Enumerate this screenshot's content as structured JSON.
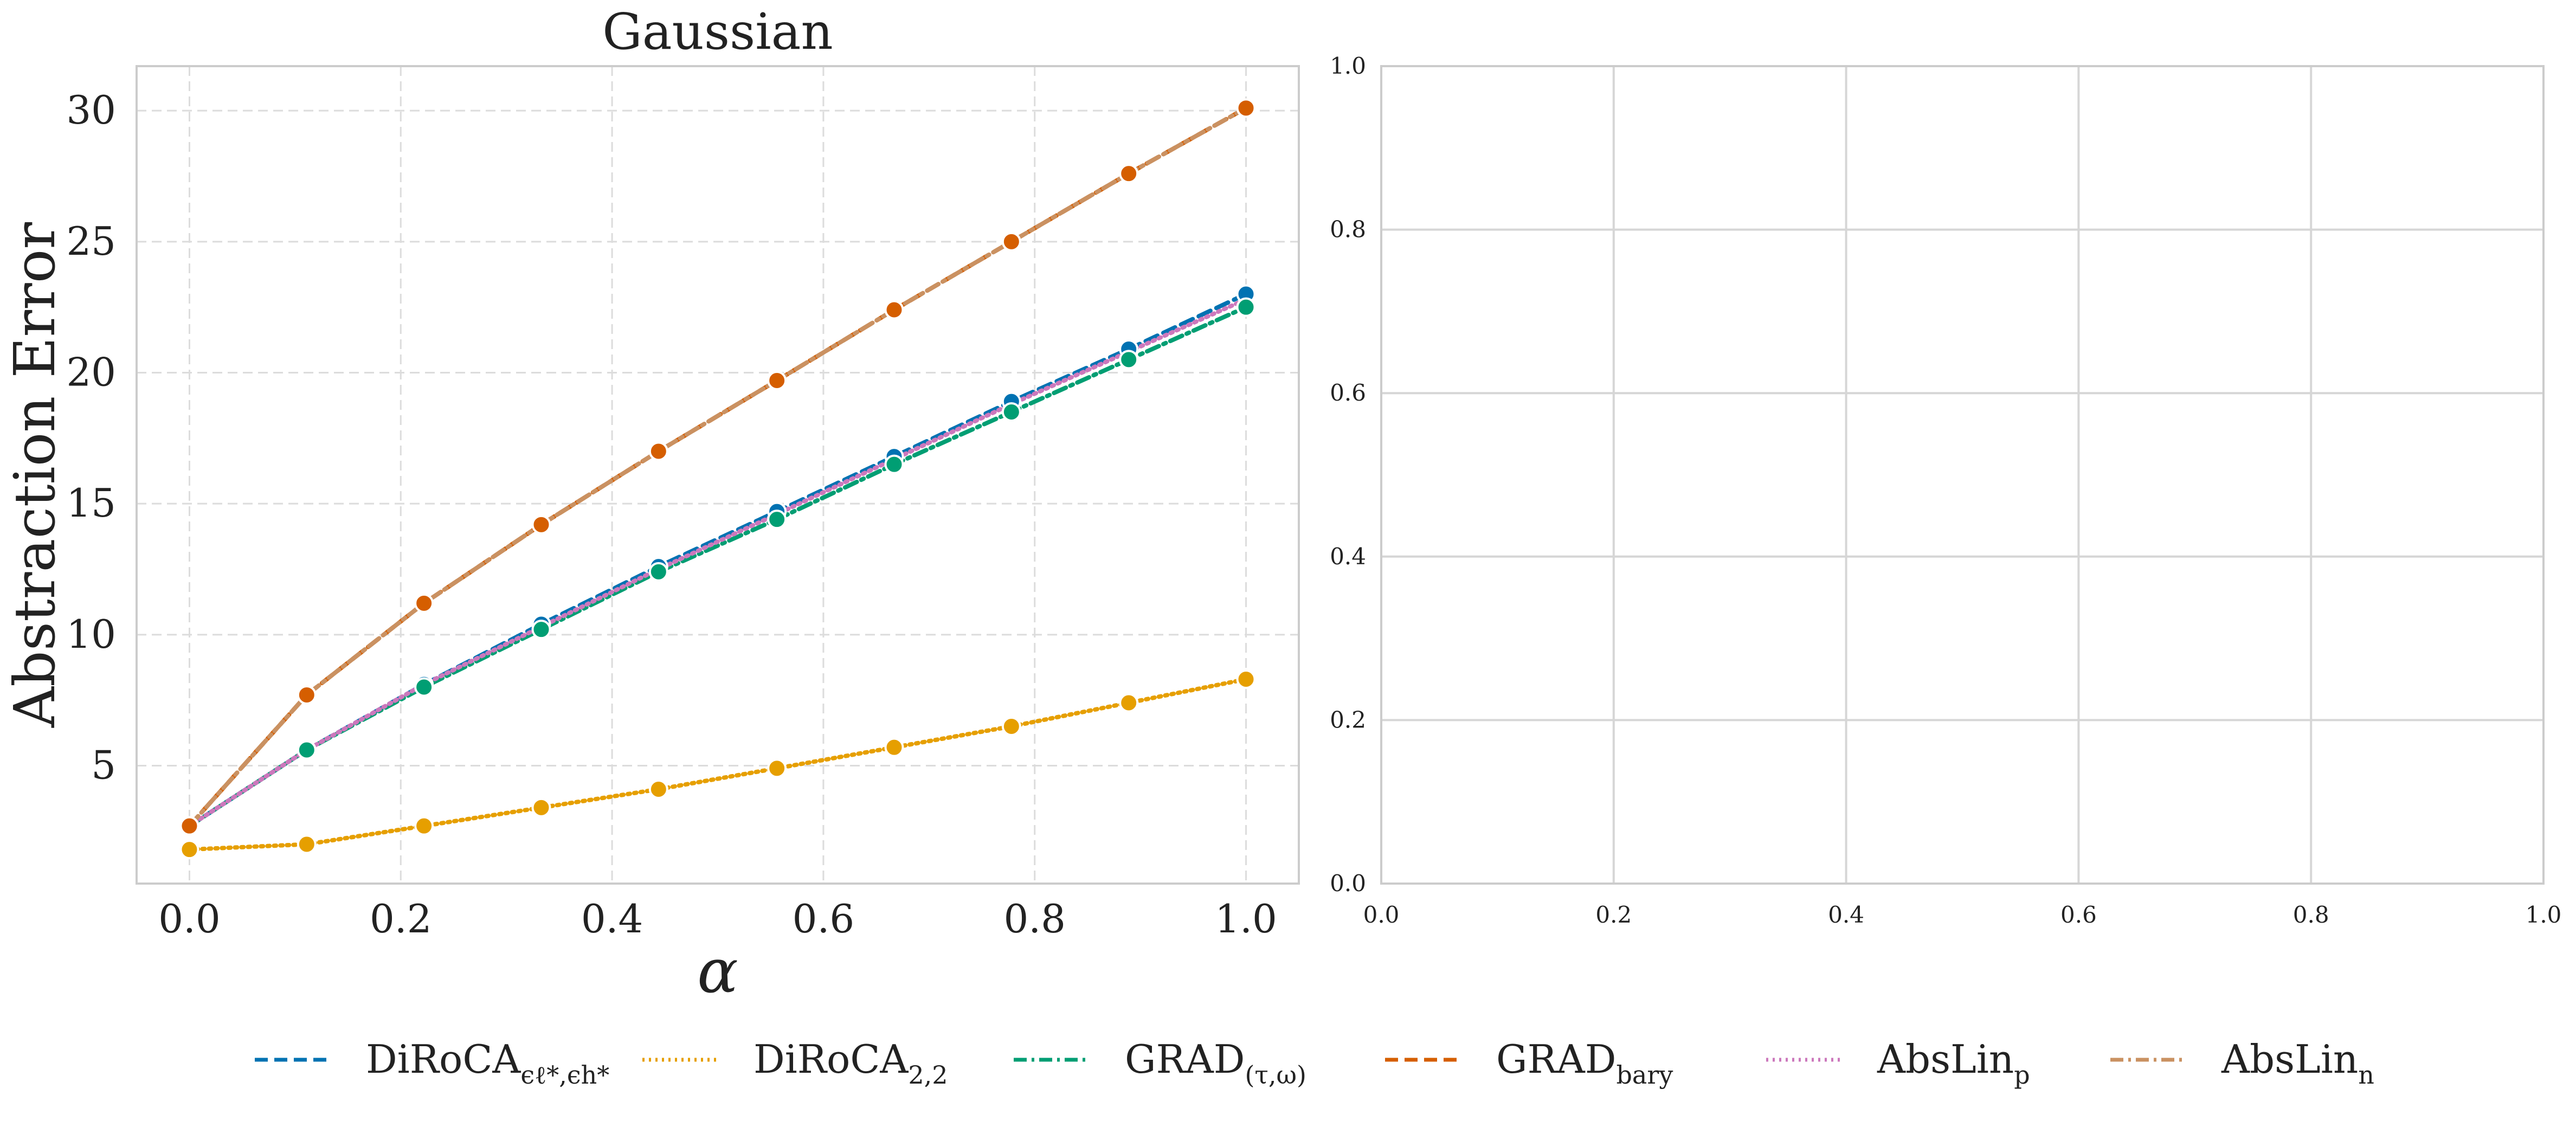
{
  "chart_data": [
    {
      "type": "line",
      "title": "Gaussian",
      "xlabel": "α",
      "ylabel": "Abstraction Error",
      "xlim": [
        -0.05,
        1.05
      ],
      "ylim": [
        0.5,
        31.7
      ],
      "xticks": [
        "0.0",
        "0.2",
        "0.4",
        "0.6",
        "0.8",
        "1.0"
      ],
      "yticks": [
        "5",
        "10",
        "15",
        "20",
        "25",
        "30"
      ],
      "grid": true,
      "legend_position": "bottom-center",
      "x": [
        0.0,
        0.111,
        0.222,
        0.333,
        0.444,
        0.556,
        0.667,
        0.778,
        0.889,
        1.0
      ],
      "series": [
        {
          "name": "DiRoCA",
          "name_sub": "ϵℓ*,ϵh*",
          "color": "#0072b2",
          "dash": "dashed",
          "values": [
            2.7,
            5.6,
            8.1,
            10.4,
            12.6,
            14.7,
            16.8,
            18.9,
            20.9,
            23.0
          ]
        },
        {
          "name": "DiRoCA",
          "name_sub": "2,2",
          "color": "#e69f00",
          "dash": "dotted",
          "values": [
            1.8,
            2.0,
            2.7,
            3.4,
            4.1,
            4.9,
            5.7,
            6.5,
            7.4,
            8.3
          ]
        },
        {
          "name": "GRAD",
          "name_sub": "(τ,ω)",
          "color": "#009e73",
          "dash": "dashdot",
          "values": [
            2.7,
            5.6,
            8.0,
            10.2,
            12.4,
            14.4,
            16.5,
            18.5,
            20.5,
            22.5
          ]
        },
        {
          "name": "GRAD",
          "name_sub": "bary",
          "color": "#d55e00",
          "dash": "dashed",
          "values": [
            2.7,
            7.7,
            11.2,
            14.2,
            17.0,
            19.7,
            22.4,
            25.0,
            27.6,
            30.1
          ]
        },
        {
          "name": "AbsLin",
          "name_sub": "p",
          "color": "#cc78bc",
          "dash": "dotted",
          "values": [
            2.7,
            5.6,
            8.1,
            10.3,
            12.5,
            14.6,
            16.7,
            18.8,
            20.8,
            22.8
          ]
        },
        {
          "name": "AbsLin",
          "name_sub": "n",
          "color": "#ca9161",
          "dash": "dashdot",
          "values": [
            2.7,
            7.7,
            11.2,
            14.2,
            17.0,
            19.7,
            22.4,
            25.0,
            27.6,
            30.1
          ]
        }
      ]
    },
    {
      "type": "line",
      "title": "",
      "xlabel": "",
      "ylabel": "",
      "xlim": [
        0.0,
        1.0
      ],
      "ylim": [
        0.0,
        1.0
      ],
      "xticks": [
        "0.0",
        "0.2",
        "0.4",
        "0.6",
        "0.8",
        "1.0"
      ],
      "yticks": [
        "0.0",
        "0.2",
        "0.4",
        "0.6",
        "0.8",
        "1.0"
      ],
      "grid": true,
      "series": []
    }
  ]
}
